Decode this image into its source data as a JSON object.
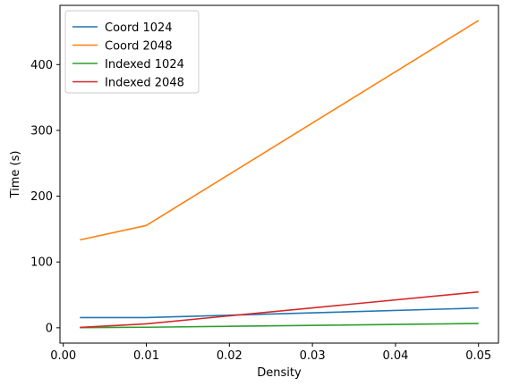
{
  "chart_data": {
    "type": "line",
    "title": "",
    "xlabel": "Density",
    "ylabel": "Time (s)",
    "xlim": [
      -0.0004,
      0.0524
    ],
    "ylim": [
      -23.3,
      490
    ],
    "x_ticks": [
      0.0,
      0.01,
      0.02,
      0.03,
      0.04,
      0.05
    ],
    "x_tick_labels": [
      "0.00",
      "0.01",
      "0.02",
      "0.03",
      "0.04",
      "0.05"
    ],
    "y_ticks": [
      0,
      100,
      200,
      300,
      400
    ],
    "y_tick_labels": [
      "0",
      "100",
      "200",
      "300",
      "400"
    ],
    "grid": false,
    "legend_position": "top-left",
    "x": [
      0.002,
      0.01,
      0.05
    ],
    "series": [
      {
        "name": "Coord 1024",
        "color": "#1f77b4",
        "values": [
          15.5,
          15.5,
          30.0
        ]
      },
      {
        "name": "Coord 2048",
        "color": "#ff7f0e",
        "values": [
          133.5,
          155.5,
          467.0
        ]
      },
      {
        "name": "Indexed 1024",
        "color": "#2ca02c",
        "values": [
          0.2,
          0.8,
          6.5
        ]
      },
      {
        "name": "Indexed 2048",
        "color": "#d62728",
        "values": [
          0.5,
          6.0,
          54.5
        ]
      }
    ]
  }
}
